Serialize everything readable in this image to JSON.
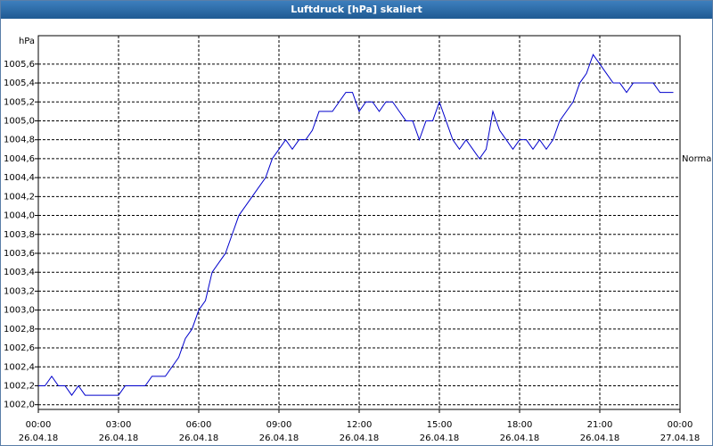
{
  "chart_data": {
    "type": "line",
    "title": "Luftdruck [hPa] skaliert",
    "y_label": "hPa",
    "reference_label": {
      "value": 1004.6,
      "label": "Normal"
    },
    "xlim": [
      0,
      24
    ],
    "xticks": [
      {
        "value": 0,
        "label": "00:00",
        "sublabel": "26.04.18"
      },
      {
        "value": 3,
        "label": "03:00",
        "sublabel": "26.04.18"
      },
      {
        "value": 6,
        "label": "06:00",
        "sublabel": "26.04.18"
      },
      {
        "value": 9,
        "label": "09:00",
        "sublabel": "26.04.18"
      },
      {
        "value": 12,
        "label": "12:00",
        "sublabel": "26.04.18"
      },
      {
        "value": 15,
        "label": "15:00",
        "sublabel": "26.04.18"
      },
      {
        "value": 18,
        "label": "18:00",
        "sublabel": "26.04.18"
      },
      {
        "value": 21,
        "label": "21:00",
        "sublabel": "26.04.18"
      },
      {
        "value": 24,
        "label": "00:00",
        "sublabel": "27.04.18"
      }
    ],
    "ylim": [
      1001.95,
      1005.9
    ],
    "yticks": [
      {
        "value": 1002.0,
        "label": "1002,0"
      },
      {
        "value": 1002.2,
        "label": "1002,2"
      },
      {
        "value": 1002.4,
        "label": "1002,4"
      },
      {
        "value": 1002.6,
        "label": "1002,6"
      },
      {
        "value": 1002.8,
        "label": "1002,8"
      },
      {
        "value": 1003.0,
        "label": "1003,0"
      },
      {
        "value": 1003.2,
        "label": "1003,2"
      },
      {
        "value": 1003.4,
        "label": "1003,4"
      },
      {
        "value": 1003.6,
        "label": "1003,6"
      },
      {
        "value": 1003.8,
        "label": "1003,8"
      },
      {
        "value": 1004.0,
        "label": "1004,0"
      },
      {
        "value": 1004.2,
        "label": "1004,2"
      },
      {
        "value": 1004.4,
        "label": "1004,4"
      },
      {
        "value": 1004.6,
        "label": "1004,6"
      },
      {
        "value": 1004.8,
        "label": "1004,8"
      },
      {
        "value": 1005.0,
        "label": "1005,0"
      },
      {
        "value": 1005.2,
        "label": "1005,2"
      },
      {
        "value": 1005.4,
        "label": "1005,4"
      },
      {
        "value": 1005.6,
        "label": "1005,6"
      }
    ],
    "grid": true,
    "x": [
      0,
      0.25,
      0.5,
      0.75,
      1,
      1.25,
      1.5,
      1.75,
      2,
      2.25,
      2.5,
      2.75,
      3,
      3.25,
      3.5,
      3.75,
      4,
      4.25,
      4.5,
      4.75,
      5,
      5.25,
      5.5,
      5.75,
      6,
      6.25,
      6.5,
      6.75,
      7,
      7.25,
      7.5,
      7.75,
      8,
      8.25,
      8.5,
      8.75,
      9,
      9.25,
      9.5,
      9.75,
      10,
      10.25,
      10.5,
      10.75,
      11,
      11.25,
      11.5,
      11.75,
      12,
      12.25,
      12.5,
      12.75,
      13,
      13.25,
      13.5,
      13.75,
      14,
      14.25,
      14.5,
      14.75,
      15,
      15.25,
      15.5,
      15.75,
      16,
      16.25,
      16.5,
      16.75,
      17,
      17.25,
      17.5,
      17.75,
      18,
      18.25,
      18.5,
      18.75,
      19,
      19.25,
      19.5,
      19.75,
      20,
      20.25,
      20.5,
      20.75,
      21,
      21.25,
      21.5,
      21.75,
      22,
      22.25,
      22.5,
      22.75,
      23,
      23.25,
      23.5,
      23.75
    ],
    "series": [
      {
        "color": "#0000cc",
        "values": [
          1002.2,
          1002.2,
          1002.3,
          1002.2,
          1002.2,
          1002.1,
          1002.2,
          1002.1,
          1002.1,
          1002.1,
          1002.1,
          1002.1,
          1002.1,
          1002.2,
          1002.2,
          1002.2,
          1002.2,
          1002.3,
          1002.3,
          1002.3,
          1002.4,
          1002.5,
          1002.7,
          1002.8,
          1003.0,
          1003.1,
          1003.4,
          1003.5,
          1003.6,
          1003.8,
          1004.0,
          1004.1,
          1004.2,
          1004.3,
          1004.4,
          1004.6,
          1004.7,
          1004.8,
          1004.7,
          1004.8,
          1004.8,
          1004.9,
          1005.1,
          1005.1,
          1005.1,
          1005.2,
          1005.3,
          1005.3,
          1005.1,
          1005.2,
          1005.2,
          1005.1,
          1005.2,
          1005.2,
          1005.1,
          1005.0,
          1005.0,
          1004.8,
          1005.0,
          1005.0,
          1005.2,
          1005.0,
          1004.8,
          1004.7,
          1004.8,
          1004.7,
          1004.6,
          1004.7,
          1005.1,
          1004.9,
          1004.8,
          1004.7,
          1004.8,
          1004.8,
          1004.7,
          1004.8,
          1004.7,
          1004.8,
          1005.0,
          1005.1,
          1005.2,
          1005.4,
          1005.5,
          1005.7,
          1005.6,
          1005.5,
          1005.4,
          1005.4,
          1005.3,
          1005.4,
          1005.4,
          1005.4,
          1005.4,
          1005.3,
          1005.3,
          1005.3
        ]
      }
    ]
  }
}
